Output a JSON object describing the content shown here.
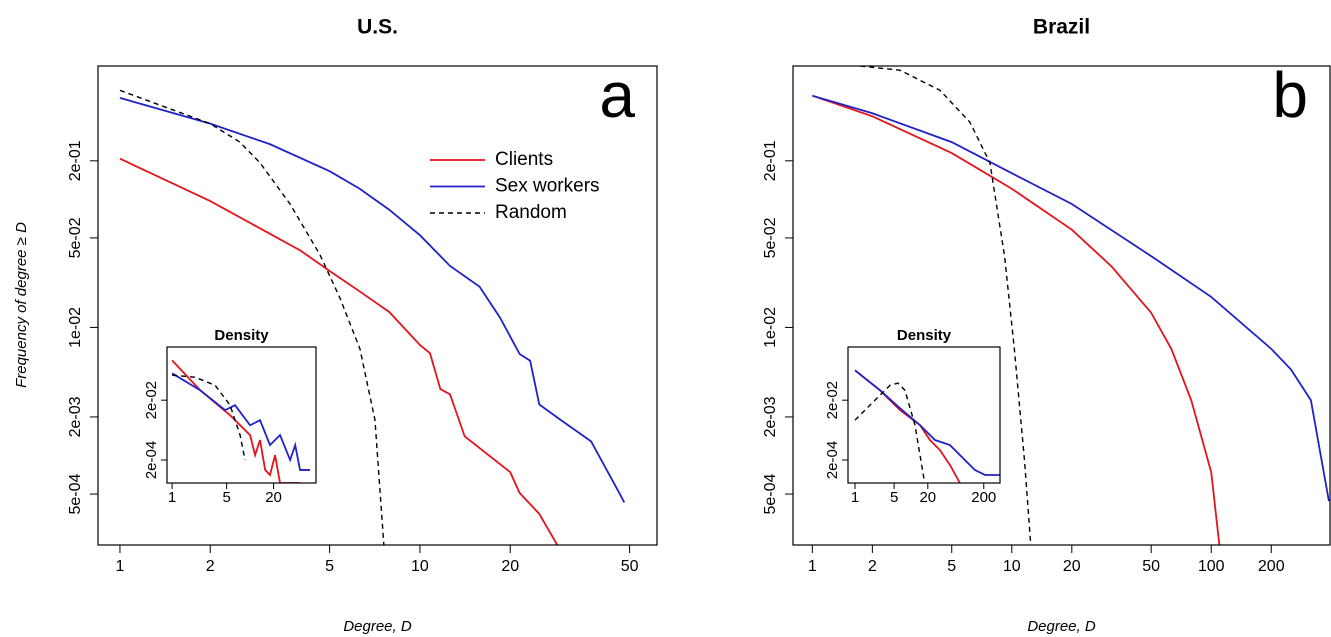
{
  "chart_data": [
    {
      "type": "line",
      "title": "U.S.",
      "panel_label": "a",
      "xlabel": "Degree, D",
      "ylabel": "Frequency of degree ≥ D",
      "xscale": "log",
      "yscale": "log",
      "xlim": [
        0.845,
        61.7
      ],
      "ylim": [
        0.0002,
        1.1
      ],
      "xticks": [
        1,
        2,
        5,
        10,
        20,
        50
      ],
      "yticks": [
        {
          "value": 0.2,
          "label": "2e-01"
        },
        {
          "value": 0.05,
          "label": "5e-02"
        },
        {
          "value": 0.01,
          "label": "1e-02"
        },
        {
          "value": 0.002,
          "label": "2e-03"
        },
        {
          "value": 0.0005,
          "label": "5e-04"
        }
      ],
      "legend": "upper right",
      "series": [
        {
          "name": "Clients",
          "color": "#e3141b",
          "style": "solid",
          "x": [
            1,
            2,
            4,
            5,
            6.3,
            7.9,
            10,
            10.8,
            11.7,
            12.6,
            14.1,
            20,
            21.5,
            25,
            28.7
          ],
          "values": [
            0.208,
            0.097,
            0.0398,
            0.0276,
            0.0191,
            0.0132,
            0.0073,
            0.0063,
            0.0033,
            0.003,
            0.00141,
            0.00074,
            0.00051,
            0.00035,
            0.0002
          ]
        },
        {
          "name": "Sex workers",
          "color": "#1f22c8",
          "style": "solid",
          "x": [
            1,
            2,
            3.16,
            5,
            6.3,
            7.9,
            10,
            12.6,
            15.8,
            18.5,
            21.5,
            23.3,
            25,
            29.4,
            37.2,
            46.4,
            48
          ],
          "values": [
            0.62,
            0.39,
            0.27,
            0.166,
            0.121,
            0.083,
            0.0525,
            0.0302,
            0.0208,
            0.0119,
            0.0062,
            0.0055,
            0.0025,
            0.0019,
            0.00129,
            0.0005,
            0.00043
          ]
        },
        {
          "name": "Random",
          "color": "#000000",
          "style": "dashed",
          "x": [
            1,
            2,
            2.51,
            2.93,
            3.69,
            4.64,
            5.41,
            6.31,
            7.08,
            7.62
          ],
          "values": [
            0.71,
            0.39,
            0.28,
            0.193,
            0.092,
            0.037,
            0.017,
            0.0068,
            0.0019,
            0.00017
          ]
        }
      ],
      "inset": {
        "title": "Density",
        "xscale": "log",
        "yscale": "log",
        "xlim": [
          0.86,
          70
        ],
        "ylim": [
          3.4e-05,
          1.2
        ],
        "xticks": [
          1,
          5,
          20
        ],
        "yticks": [
          {
            "value": 0.02,
            "label": "2e-02"
          },
          {
            "value": 0.0002,
            "label": "2e-04"
          }
        ],
        "series": [
          {
            "color": "#e3141b",
            "style": "solid",
            "x": [
              1,
              2.29,
              5.53,
              10,
              11.6,
              13.4,
              15.6,
              18,
              20.9,
              24.2,
              43.7
            ],
            "values": [
              0.43,
              0.043,
              0.0063,
              0.00136,
              0.00029,
              0.00093,
              9.3e-05,
              6.3e-05,
              0.00029,
              3.4e-05,
              3.4e-05
            ]
          },
          {
            "color": "#1f22c8",
            "style": "solid",
            "x": [
              1,
              2.29,
              4.78,
              6.41,
              10,
              13.4,
              18,
              24.2,
              32.6,
              37.9,
              43.7,
              58.7
            ],
            "values": [
              0.158,
              0.043,
              0.0093,
              0.0136,
              0.0029,
              0.0043,
              0.00063,
              0.00136,
              0.0002,
              0.00063,
              9.3e-05,
              9.3e-05
            ]
          },
          {
            "color": "#000000",
            "style": "dashed",
            "x": [
              1,
              1.97,
              3.56,
              5.53,
              7.44,
              8.61
            ],
            "values": [
              0.137,
              0.117,
              0.063,
              0.0136,
              0.00136,
              0.0002
            ]
          }
        ]
      }
    },
    {
      "type": "line",
      "title": "Brazil",
      "panel_label": "b",
      "xlabel": "Degree, D",
      "xscale": "log",
      "yscale": "log",
      "xlim": [
        0.8,
        394
      ],
      "ylim": [
        0.0002,
        1.1
      ],
      "xticks": [
        1,
        2,
        5,
        10,
        20,
        50,
        100,
        200
      ],
      "yticks": [
        {
          "value": 0.2,
          "label": "2e-01"
        },
        {
          "value": 0.05,
          "label": "5e-02"
        },
        {
          "value": 0.01,
          "label": "1e-02"
        },
        {
          "value": 0.002,
          "label": "2e-03"
        },
        {
          "value": 0.0005,
          "label": "5e-04"
        }
      ],
      "series": [
        {
          "color": "#e3141b",
          "style": "solid",
          "x": [
            1,
            2,
            5,
            10,
            20,
            31.6,
            50,
            63.1,
            79.4,
            100,
            112
          ],
          "values": [
            0.645,
            0.445,
            0.23,
            0.121,
            0.058,
            0.03,
            0.013,
            0.0068,
            0.0027,
            0.00074,
            0.000153
          ]
        },
        {
          "color": "#1f22c8",
          "style": "solid",
          "x": [
            1,
            2,
            5,
            10,
            20,
            50,
            100,
            200,
            251,
            316,
            389
          ],
          "values": [
            0.645,
            0.47,
            0.28,
            0.16,
            0.092,
            0.036,
            0.0173,
            0.0068,
            0.0047,
            0.0027,
            0.00044
          ]
        },
        {
          "color": "#000000",
          "style": "dashed",
          "x": [
            1.74,
            2.75,
            4.37,
            6.17,
            7.77,
            9.2,
            10.3,
            11.6,
            12.6
          ],
          "values": [
            1.1,
            1.02,
            0.71,
            0.4,
            0.193,
            0.036,
            0.0068,
            0.00089,
            0.000155
          ]
        }
      ],
      "inset": {
        "title": "Density",
        "xscale": "log",
        "yscale": "log",
        "xlim": [
          0.75,
          390
        ],
        "ylim": [
          3.4e-05,
          1.2
        ],
        "xticks": [
          1,
          5,
          20,
          200
        ],
        "yticks": [
          {
            "value": 0.02,
            "label": "2e-02"
          },
          {
            "value": 0.0002,
            "label": "2e-04"
          }
        ],
        "series": [
          {
            "color": "#e3141b",
            "style": "solid",
            "x": [
              1,
              2.79,
              6.36,
              14.5,
              21.8,
              32.9,
              49.7,
              75
            ],
            "values": [
              0.2,
              0.043,
              0.0093,
              0.00293,
              0.00093,
              0.00043,
              0.000136,
              3.4e-05
            ]
          },
          {
            "color": "#1f22c8",
            "style": "solid",
            "x": [
              1,
              2.79,
              6.36,
              14.5,
              26.8,
              49.7,
              91.7,
              138,
              210,
              389
            ],
            "values": [
              0.2,
              0.043,
              0.0108,
              0.00293,
              0.00093,
              0.00063,
              0.0002,
              9.3e-05,
              6.3e-05,
              6.3e-05
            ]
          },
          {
            "color": "#000000",
            "style": "dashed",
            "x": [
              1,
              2.28,
              4.22,
              5.86,
              7.8,
              11.8,
              17.8
            ],
            "values": [
              0.0043,
              0.02,
              0.063,
              0.074,
              0.043,
              0.00293,
              3e-05
            ]
          }
        ]
      }
    }
  ]
}
